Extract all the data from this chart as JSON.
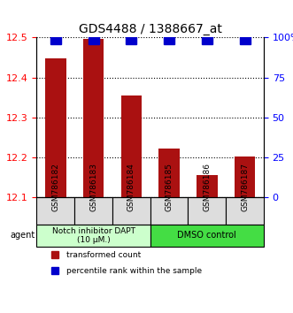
{
  "title": "GDS4488 / 1388667_at",
  "samples": [
    "GSM786182",
    "GSM786183",
    "GSM786184",
    "GSM786185",
    "GSM786186",
    "GSM786187"
  ],
  "red_values": [
    12.447,
    12.497,
    12.355,
    12.222,
    12.155,
    12.202
  ],
  "blue_values": [
    99,
    99,
    99,
    99,
    99,
    99
  ],
  "ylim_left": [
    12.1,
    12.5
  ],
  "ylim_right": [
    0,
    100
  ],
  "yticks_left": [
    12.1,
    12.2,
    12.3,
    12.4,
    12.5
  ],
  "yticks_right": [
    0,
    25,
    50,
    75,
    100
  ],
  "ytick_labels_right": [
    "0",
    "25",
    "50",
    "75",
    "100%"
  ],
  "bar_color": "#aa1111",
  "dot_color": "#0000cc",
  "group1_label": "Notch inhibitor DAPT\n(10 μM.)",
  "group2_label": "DMSO control",
  "group1_color": "#ccffcc",
  "group2_color": "#44dd44",
  "group1_samples": [
    0,
    1,
    2
  ],
  "group2_samples": [
    3,
    4,
    5
  ],
  "legend_red": "transformed count",
  "legend_blue": "percentile rank within the sample",
  "agent_label": "agent",
  "bar_width": 0.55,
  "dot_size": 8,
  "baseline": 12.1
}
